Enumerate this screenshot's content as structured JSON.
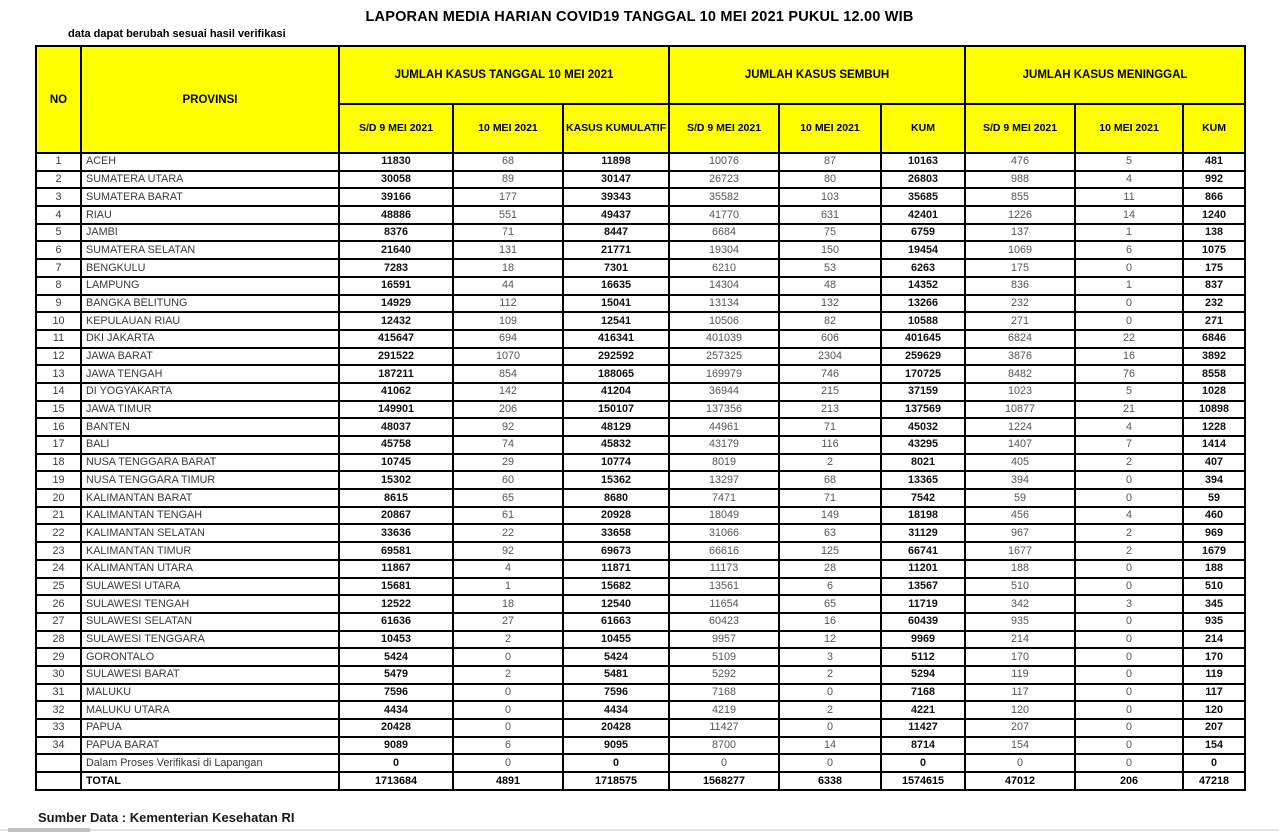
{
  "title": "LAPORAN MEDIA HARIAN COVID19 TANGGAL 10 MEI 2021 PUKUL 12.00 WIB",
  "note": "data dapat berubah sesuai hasil verifikasi",
  "source": "Sumber Data : Kementerian Kesehatan RI",
  "colors": {
    "header_bg": "#FFFF00",
    "border": "#000000",
    "bold_text": "#111111",
    "regular_text": "#555555"
  },
  "table": {
    "headers": {
      "no": "NO",
      "provinsi": "PROVINSI",
      "group_kasus": "JUMLAH KASUS TANGGAL 10 MEI 2021",
      "group_sembuh": "JUMLAH KASUS SEMBUH",
      "group_meninggal": "JUMLAH KASUS MENINGGAL"
    },
    "sub_headers": [
      "S/D 9 MEI 2021",
      "10 MEI 2021",
      "KASUS KUMULATIF",
      "S/D 9 MEI 2021",
      "10 MEI 2021",
      "KUM",
      "S/D 9 MEI 2021",
      "10 MEI 2021",
      "KUM"
    ],
    "rows": [
      {
        "no": "1",
        "provinsi": "ACEH",
        "values": [
          "11830",
          "68",
          "11898",
          "10076",
          "87",
          "10163",
          "476",
          "5",
          "481"
        ]
      },
      {
        "no": "2",
        "provinsi": "SUMATERA UTARA",
        "values": [
          "30058",
          "89",
          "30147",
          "26723",
          "80",
          "26803",
          "988",
          "4",
          "992"
        ]
      },
      {
        "no": "3",
        "provinsi": "SUMATERA BARAT",
        "values": [
          "39166",
          "177",
          "39343",
          "35582",
          "103",
          "35685",
          "855",
          "11",
          "866"
        ]
      },
      {
        "no": "4",
        "provinsi": "RIAU",
        "values": [
          "48886",
          "551",
          "49437",
          "41770",
          "631",
          "42401",
          "1226",
          "14",
          "1240"
        ]
      },
      {
        "no": "5",
        "provinsi": "JAMBI",
        "values": [
          "8376",
          "71",
          "8447",
          "6684",
          "75",
          "6759",
          "137",
          "1",
          "138"
        ]
      },
      {
        "no": "6",
        "provinsi": "SUMATERA SELATAN",
        "values": [
          "21640",
          "131",
          "21771",
          "19304",
          "150",
          "19454",
          "1069",
          "6",
          "1075"
        ]
      },
      {
        "no": "7",
        "provinsi": "BENGKULU",
        "values": [
          "7283",
          "18",
          "7301",
          "6210",
          "53",
          "6263",
          "175",
          "0",
          "175"
        ]
      },
      {
        "no": "8",
        "provinsi": "LAMPUNG",
        "values": [
          "16591",
          "44",
          "16635",
          "14304",
          "48",
          "14352",
          "836",
          "1",
          "837"
        ]
      },
      {
        "no": "9",
        "provinsi": "BANGKA BELITUNG",
        "values": [
          "14929",
          "112",
          "15041",
          "13134",
          "132",
          "13266",
          "232",
          "0",
          "232"
        ]
      },
      {
        "no": "10",
        "provinsi": "KEPULAUAN RIAU",
        "values": [
          "12432",
          "109",
          "12541",
          "10506",
          "82",
          "10588",
          "271",
          "0",
          "271"
        ]
      },
      {
        "no": "11",
        "provinsi": "DKI JAKARTA",
        "values": [
          "415647",
          "694",
          "416341",
          "401039",
          "606",
          "401645",
          "6824",
          "22",
          "6846"
        ]
      },
      {
        "no": "12",
        "provinsi": "JAWA BARAT",
        "values": [
          "291522",
          "1070",
          "292592",
          "257325",
          "2304",
          "259629",
          "3876",
          "16",
          "3892"
        ]
      },
      {
        "no": "13",
        "provinsi": "JAWA TENGAH",
        "values": [
          "187211",
          "854",
          "188065",
          "169979",
          "746",
          "170725",
          "8482",
          "76",
          "8558"
        ]
      },
      {
        "no": "14",
        "provinsi": "DI YOGYAKARTA",
        "values": [
          "41062",
          "142",
          "41204",
          "36944",
          "215",
          "37159",
          "1023",
          "5",
          "1028"
        ]
      },
      {
        "no": "15",
        "provinsi": "JAWA TIMUR",
        "values": [
          "149901",
          "206",
          "150107",
          "137356",
          "213",
          "137569",
          "10877",
          "21",
          "10898"
        ]
      },
      {
        "no": "16",
        "provinsi": "BANTEN",
        "values": [
          "48037",
          "92",
          "48129",
          "44961",
          "71",
          "45032",
          "1224",
          "4",
          "1228"
        ]
      },
      {
        "no": "17",
        "provinsi": "BALI",
        "values": [
          "45758",
          "74",
          "45832",
          "43179",
          "116",
          "43295",
          "1407",
          "7",
          "1414"
        ]
      },
      {
        "no": "18",
        "provinsi": "NUSA TENGGARA BARAT",
        "values": [
          "10745",
          "29",
          "10774",
          "8019",
          "2",
          "8021",
          "405",
          "2",
          "407"
        ]
      },
      {
        "no": "19",
        "provinsi": "NUSA TENGGARA TIMUR",
        "values": [
          "15302",
          "60",
          "15362",
          "13297",
          "68",
          "13365",
          "394",
          "0",
          "394"
        ]
      },
      {
        "no": "20",
        "provinsi": "KALIMANTAN BARAT",
        "values": [
          "8615",
          "65",
          "8680",
          "7471",
          "71",
          "7542",
          "59",
          "0",
          "59"
        ]
      },
      {
        "no": "21",
        "provinsi": "KALIMANTAN TENGAH",
        "values": [
          "20867",
          "61",
          "20928",
          "18049",
          "149",
          "18198",
          "456",
          "4",
          "460"
        ]
      },
      {
        "no": "22",
        "provinsi": "KALIMANTAN SELATAN",
        "values": [
          "33636",
          "22",
          "33658",
          "31066",
          "63",
          "31129",
          "967",
          "2",
          "969"
        ]
      },
      {
        "no": "23",
        "provinsi": "KALIMANTAN TIMUR",
        "values": [
          "69581",
          "92",
          "69673",
          "66616",
          "125",
          "66741",
          "1677",
          "2",
          "1679"
        ]
      },
      {
        "no": "24",
        "provinsi": "KALIMANTAN UTARA",
        "values": [
          "11867",
          "4",
          "11871",
          "11173",
          "28",
          "11201",
          "188",
          "0",
          "188"
        ]
      },
      {
        "no": "25",
        "provinsi": "SULAWESI UTARA",
        "values": [
          "15681",
          "1",
          "15682",
          "13561",
          "6",
          "13567",
          "510",
          "0",
          "510"
        ]
      },
      {
        "no": "26",
        "provinsi": "SULAWESI TENGAH",
        "values": [
          "12522",
          "18",
          "12540",
          "11654",
          "65",
          "11719",
          "342",
          "3",
          "345"
        ]
      },
      {
        "no": "27",
        "provinsi": "SULAWESI SELATAN",
        "values": [
          "61636",
          "27",
          "61663",
          "60423",
          "16",
          "60439",
          "935",
          "0",
          "935"
        ]
      },
      {
        "no": "28",
        "provinsi": "SULAWESI TENGGARA",
        "values": [
          "10453",
          "2",
          "10455",
          "9957",
          "12",
          "9969",
          "214",
          "0",
          "214"
        ]
      },
      {
        "no": "29",
        "provinsi": "GORONTALO",
        "values": [
          "5424",
          "0",
          "5424",
          "5109",
          "3",
          "5112",
          "170",
          "0",
          "170"
        ]
      },
      {
        "no": "30",
        "provinsi": "SULAWESI BARAT",
        "values": [
          "5479",
          "2",
          "5481",
          "5292",
          "2",
          "5294",
          "119",
          "0",
          "119"
        ]
      },
      {
        "no": "31",
        "provinsi": "MALUKU",
        "values": [
          "7596",
          "0",
          "7596",
          "7168",
          "0",
          "7168",
          "117",
          "0",
          "117"
        ]
      },
      {
        "no": "32",
        "provinsi": "MALUKU UTARA",
        "values": [
          "4434",
          "0",
          "4434",
          "4219",
          "2",
          "4221",
          "120",
          "0",
          "120"
        ]
      },
      {
        "no": "33",
        "provinsi": "PAPUA",
        "values": [
          "20428",
          "0",
          "20428",
          "11427",
          "0",
          "11427",
          "207",
          "0",
          "207"
        ]
      },
      {
        "no": "34",
        "provinsi": "PAPUA BARAT",
        "values": [
          "9089",
          "6",
          "9095",
          "8700",
          "14",
          "8714",
          "154",
          "0",
          "154"
        ]
      }
    ],
    "verification_row": {
      "no": "",
      "provinsi": "Dalam Proses Verifikasi di Lapangan",
      "values": [
        "0",
        "0",
        "0",
        "0",
        "0",
        "0",
        "0",
        "0",
        "0"
      ]
    },
    "total_row": {
      "no": "",
      "provinsi": "TOTAL",
      "values": [
        "1713684",
        "4891",
        "1718575",
        "1568277",
        "6338",
        "1574615",
        "47012",
        "206",
        "47218"
      ]
    }
  }
}
